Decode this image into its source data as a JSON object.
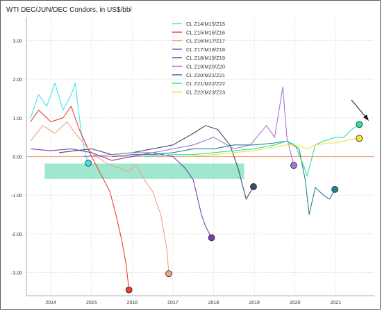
{
  "chart_data": {
    "type": "line",
    "title": "WTI DEC/JUN/DEC Condors, in US$/bbl",
    "xlabel": "",
    "ylabel": "",
    "xlim": [
      2013.4,
      2021.95
    ],
    "ylim": [
      -3.6,
      3.6
    ],
    "x_ticks": [
      2014,
      2015,
      2016,
      2017,
      2018,
      2019,
      2020,
      2021
    ],
    "y_ticks": [
      -3.0,
      -2.0,
      -1.0,
      0.0,
      1.0,
      2.0,
      3.0
    ],
    "y_tick_labels": [
      "-3.00",
      "-2.00",
      "-1.00",
      "0.00",
      "1.00",
      "2.00",
      "3.00"
    ],
    "grid": true,
    "legend_position": "top-center",
    "zero_line_color": "#f0a882",
    "series": [
      {
        "name": "CL Z14/M15/Z15",
        "color": "#3fe3ef",
        "points": [
          [
            2013.5,
            1.0
          ],
          [
            2013.7,
            1.6
          ],
          [
            2013.9,
            1.3
          ],
          [
            2014.1,
            1.9
          ],
          [
            2014.3,
            1.2
          ],
          [
            2014.5,
            1.6
          ],
          [
            2014.6,
            1.9
          ],
          [
            2014.75,
            0.6
          ],
          [
            2014.85,
            0.05
          ],
          [
            2014.92,
            -0.17
          ]
        ],
        "end": {
          "x": 2014.92,
          "y": -0.17
        }
      },
      {
        "name": "CL Z15/M16/Z16",
        "color": "#e8412f",
        "points": [
          [
            2013.5,
            0.9
          ],
          [
            2013.7,
            1.2
          ],
          [
            2014.0,
            0.9
          ],
          [
            2014.3,
            1.0
          ],
          [
            2014.5,
            1.3
          ],
          [
            2014.7,
            0.7
          ],
          [
            2015.0,
            0.0
          ],
          [
            2015.2,
            -0.4
          ],
          [
            2015.45,
            -0.9
          ],
          [
            2015.6,
            -1.5
          ],
          [
            2015.75,
            -2.2
          ],
          [
            2015.85,
            -2.8
          ],
          [
            2015.92,
            -3.45
          ]
        ],
        "end": {
          "x": 2015.92,
          "y": -3.45
        }
      },
      {
        "name": "CL Z16/M17/Z17",
        "color": "#f2a08a",
        "points": [
          [
            2013.5,
            0.4
          ],
          [
            2013.8,
            0.8
          ],
          [
            2014.1,
            0.6
          ],
          [
            2014.4,
            0.9
          ],
          [
            2014.6,
            0.6
          ],
          [
            2015.0,
            0.1
          ],
          [
            2015.4,
            -0.2
          ],
          [
            2015.7,
            -0.3
          ],
          [
            2015.9,
            -0.4
          ],
          [
            2016.1,
            -0.2
          ],
          [
            2016.3,
            -0.6
          ],
          [
            2016.5,
            -0.9
          ],
          [
            2016.7,
            -1.5
          ],
          [
            2016.85,
            -2.4
          ],
          [
            2016.9,
            -3.03
          ]
        ],
        "end": {
          "x": 2016.9,
          "y": -3.03
        }
      },
      {
        "name": "CL Z17/M18/Z18",
        "color": "#7b3fb0",
        "points": [
          [
            2013.5,
            0.2
          ],
          [
            2014.0,
            0.15
          ],
          [
            2014.5,
            0.2
          ],
          [
            2015.0,
            0.1
          ],
          [
            2015.5,
            -0.1
          ],
          [
            2016.0,
            0.0
          ],
          [
            2016.5,
            0.1
          ],
          [
            2017.0,
            0.0
          ],
          [
            2017.3,
            -0.3
          ],
          [
            2017.5,
            -0.6
          ],
          [
            2017.7,
            -1.5
          ],
          [
            2017.8,
            -1.8
          ],
          [
            2017.95,
            -2.1
          ]
        ],
        "end": {
          "x": 2017.95,
          "y": -2.1
        }
      },
      {
        "name": "CL Z18/M19/Z19",
        "color": "#3d4a6a",
        "points": [
          [
            2014.2,
            0.1
          ],
          [
            2015.0,
            0.2
          ],
          [
            2015.5,
            0.05
          ],
          [
            2016.0,
            0.1
          ],
          [
            2016.5,
            0.2
          ],
          [
            2017.0,
            0.3
          ],
          [
            2017.5,
            0.6
          ],
          [
            2017.8,
            0.8
          ],
          [
            2018.1,
            0.7
          ],
          [
            2018.4,
            0.3
          ],
          [
            2018.6,
            -0.3
          ],
          [
            2018.8,
            -1.1
          ],
          [
            2018.98,
            -0.78
          ]
        ],
        "end": {
          "x": 2018.98,
          "y": -0.78
        }
      },
      {
        "name": "CL Z19/M20/Z20",
        "color": "#a278d6",
        "points": [
          [
            2014.8,
            0.0
          ],
          [
            2015.5,
            0.05
          ],
          [
            2016.0,
            0.1
          ],
          [
            2016.5,
            0.1
          ],
          [
            2017.0,
            0.2
          ],
          [
            2017.5,
            0.3
          ],
          [
            2018.0,
            0.5
          ],
          [
            2018.5,
            0.2
          ],
          [
            2018.9,
            0.3
          ],
          [
            2019.3,
            0.8
          ],
          [
            2019.5,
            0.5
          ],
          [
            2019.7,
            1.8
          ],
          [
            2019.8,
            0.5
          ],
          [
            2019.97,
            -0.23
          ]
        ],
        "end": {
          "x": 2019.97,
          "y": -0.23
        }
      },
      {
        "name": "CL Z20/M21/Z21",
        "color": "#2b7f8c",
        "points": [
          [
            2015.5,
            0.0
          ],
          [
            2016.0,
            0.05
          ],
          [
            2016.5,
            0.05
          ],
          [
            2017.0,
            0.1
          ],
          [
            2017.5,
            0.2
          ],
          [
            2018.0,
            0.2
          ],
          [
            2018.5,
            0.3
          ],
          [
            2019.0,
            0.3
          ],
          [
            2019.5,
            0.35
          ],
          [
            2019.8,
            0.4
          ],
          [
            2020.1,
            0.2
          ],
          [
            2020.25,
            -0.6
          ],
          [
            2020.35,
            -1.5
          ],
          [
            2020.5,
            -0.8
          ],
          [
            2020.7,
            -1.0
          ],
          [
            2020.85,
            -1.1
          ],
          [
            2020.98,
            -0.85
          ]
        ],
        "end": {
          "x": 2020.98,
          "y": -0.85
        }
      },
      {
        "name": "CL Z21/M22/Z22",
        "color": "#2ee29a",
        "points": [
          [
            2016.3,
            0.0
          ],
          [
            2017.0,
            0.05
          ],
          [
            2017.5,
            0.05
          ],
          [
            2018.0,
            0.1
          ],
          [
            2018.5,
            0.15
          ],
          [
            2019.0,
            0.2
          ],
          [
            2019.5,
            0.3
          ],
          [
            2019.8,
            0.4
          ],
          [
            2020.0,
            0.3
          ],
          [
            2020.2,
            -0.2
          ],
          [
            2020.3,
            -0.5
          ],
          [
            2020.5,
            0.3
          ],
          [
            2020.7,
            0.4
          ],
          [
            2021.0,
            0.5
          ],
          [
            2021.2,
            0.5
          ],
          [
            2021.4,
            0.7
          ],
          [
            2021.58,
            0.83
          ]
        ],
        "end": {
          "x": 2021.58,
          "y": 0.83
        }
      },
      {
        "name": "CL Z22/M23/Z23",
        "color": "#f2e23c",
        "points": [
          [
            2017.3,
            0.0
          ],
          [
            2018.0,
            0.05
          ],
          [
            2018.5,
            0.1
          ],
          [
            2019.0,
            0.15
          ],
          [
            2019.5,
            0.25
          ],
          [
            2019.8,
            0.3
          ],
          [
            2020.0,
            0.3
          ],
          [
            2020.3,
            0.2
          ],
          [
            2020.5,
            0.3
          ],
          [
            2020.8,
            0.35
          ],
          [
            2021.0,
            0.35
          ],
          [
            2021.2,
            0.4
          ],
          [
            2021.4,
            0.45
          ],
          [
            2021.58,
            0.47
          ]
        ],
        "end": {
          "x": 2021.58,
          "y": 0.47
        }
      }
    ],
    "band": {
      "x": [
        2013.85,
        2018.75
      ],
      "y": [
        -0.58,
        -0.18
      ],
      "color": "#7fe0bd"
    }
  }
}
